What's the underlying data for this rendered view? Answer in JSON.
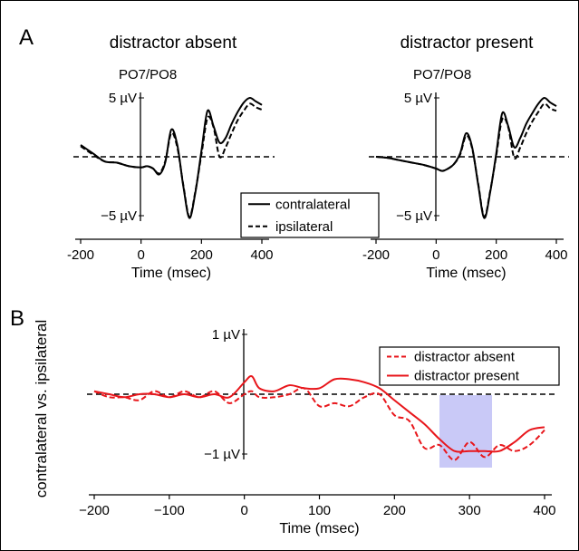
{
  "panel_a_letter": "A",
  "panel_b_letter": "B",
  "chart_data": [
    {
      "type": "line",
      "panel": "A",
      "title": "distractor absent",
      "subtitle": "PO7/PO8",
      "xlabel": "Time (msec)",
      "ylabel": "",
      "xlim": [
        -200,
        420
      ],
      "ylim": [
        -5.5,
        5.5
      ],
      "x_ticks": [
        "-200",
        "0",
        "200",
        "400"
      ],
      "y_ticks": [
        "5 µV",
        "−5 µV"
      ],
      "legend_position": "lower-right",
      "x": [
        -200,
        -160,
        -120,
        -80,
        -40,
        0,
        20,
        40,
        60,
        80,
        100,
        120,
        140,
        160,
        180,
        200,
        220,
        240,
        260,
        280,
        300,
        320,
        340,
        360,
        380,
        400
      ],
      "series": [
        {
          "name": "contralateral",
          "style": "solid",
          "color": "#000000",
          "values": [
            1.0,
            0.3,
            -0.4,
            -0.5,
            -0.8,
            -0.9,
            -0.8,
            -1.0,
            -1.5,
            -0.5,
            2.3,
            1.0,
            -2.5,
            -5.2,
            -3.0,
            0.5,
            3.9,
            2.6,
            1.2,
            1.6,
            2.8,
            3.8,
            4.6,
            5.0,
            4.7,
            4.4
          ]
        },
        {
          "name": "ipsilateral",
          "style": "dashed",
          "color": "#000000",
          "values": [
            0.9,
            0.2,
            -0.4,
            -0.5,
            -0.8,
            -0.9,
            -0.8,
            -1.0,
            -1.4,
            -0.4,
            2.0,
            0.8,
            -2.4,
            -5.1,
            -2.9,
            0.2,
            3.3,
            2.5,
            0.0,
            0.8,
            2.0,
            3.1,
            3.9,
            4.5,
            4.2,
            4.0
          ]
        }
      ]
    },
    {
      "type": "line",
      "panel": "A",
      "title": "distractor present",
      "subtitle": "PO7/PO8",
      "xlabel": "Time (msec)",
      "ylabel": "",
      "xlim": [
        -200,
        420
      ],
      "ylim": [
        -5.5,
        5.5
      ],
      "x_ticks": [
        "-200",
        "0",
        "200",
        "400"
      ],
      "y_ticks": [
        "5 µV",
        "−5 µV"
      ],
      "x": [
        -200,
        -160,
        -120,
        -80,
        -40,
        0,
        20,
        40,
        60,
        80,
        100,
        120,
        140,
        160,
        180,
        200,
        220,
        240,
        260,
        280,
        300,
        320,
        340,
        360,
        380,
        400
      ],
      "series": [
        {
          "name": "contralateral",
          "style": "solid",
          "color": "#000000",
          "values": [
            0.0,
            -0.1,
            -0.3,
            -0.5,
            -0.7,
            -1.0,
            -1.2,
            -1.0,
            -0.6,
            0.3,
            2.0,
            0.8,
            -2.4,
            -5.2,
            -3.0,
            0.3,
            3.7,
            2.6,
            0.8,
            1.6,
            2.8,
            3.7,
            4.5,
            5.0,
            4.6,
            4.3
          ]
        },
        {
          "name": "ipsilateral",
          "style": "dashed",
          "color": "#000000",
          "values": [
            0.0,
            -0.1,
            -0.3,
            -0.5,
            -0.7,
            -1.0,
            -1.2,
            -1.0,
            -0.6,
            0.2,
            1.8,
            0.7,
            -2.3,
            -5.1,
            -2.9,
            0.1,
            3.2,
            2.5,
            -0.1,
            0.8,
            2.0,
            3.0,
            3.8,
            4.5,
            4.1,
            3.9
          ]
        }
      ]
    },
    {
      "type": "line",
      "panel": "B",
      "title": "",
      "xlabel": "Time (msec)",
      "ylabel": "contralateral vs. ipsilateral",
      "xlim": [
        -220,
        410
      ],
      "ylim": [
        -1.45,
        1.3
      ],
      "x_ticks": [
        "−200",
        "−100",
        "0",
        "100",
        "200",
        "300",
        "400"
      ],
      "y_ticks": [
        "1 µV",
        "−1 µV"
      ],
      "legend_position": "top-right",
      "shaded_interval": {
        "x": [
          260,
          330
        ],
        "color": "#c9c9f7"
      },
      "x": [
        -200,
        -180,
        -160,
        -140,
        -120,
        -100,
        -80,
        -60,
        -40,
        -20,
        0,
        10,
        20,
        40,
        60,
        80,
        100,
        120,
        140,
        160,
        180,
        200,
        220,
        240,
        260,
        280,
        300,
        320,
        340,
        360,
        380,
        400
      ],
      "series": [
        {
          "name": "distractor absent",
          "style": "dashed",
          "color": "#e8161b",
          "values": [
            0.05,
            -0.05,
            -0.05,
            -0.1,
            0.05,
            -0.05,
            0.05,
            -0.05,
            0.05,
            -0.15,
            0.0,
            0.05,
            -0.05,
            -0.05,
            0.0,
            0.1,
            -0.2,
            -0.15,
            -0.2,
            -0.05,
            0.0,
            -0.35,
            -0.45,
            -0.9,
            -0.85,
            -1.1,
            -0.8,
            -1.05,
            -0.85,
            -0.95,
            -0.85,
            -0.6
          ]
        },
        {
          "name": "distractor present",
          "style": "solid",
          "color": "#e8161b",
          "values": [
            0.05,
            0.0,
            -0.05,
            0.0,
            0.0,
            -0.05,
            0.0,
            -0.05,
            0.0,
            -0.05,
            0.2,
            0.3,
            0.1,
            0.05,
            0.15,
            0.1,
            0.1,
            0.25,
            0.25,
            0.2,
            0.1,
            -0.1,
            -0.3,
            -0.5,
            -0.75,
            -0.95,
            -0.95,
            -0.95,
            -0.95,
            -0.8,
            -0.6,
            -0.55
          ]
        }
      ]
    }
  ]
}
